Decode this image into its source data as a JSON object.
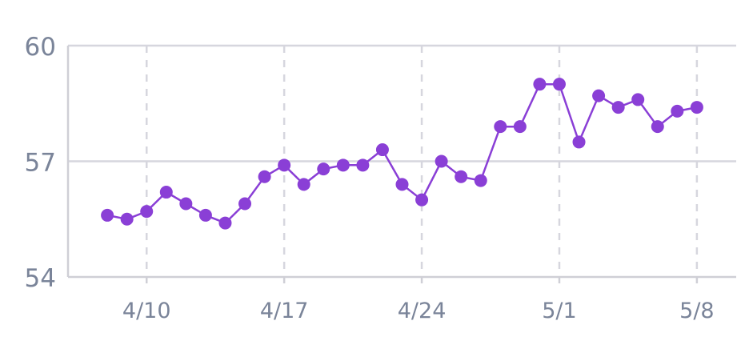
{
  "chart_data": {
    "type": "line",
    "title": "",
    "xlabel": "",
    "ylabel": "",
    "ylim": [
      54,
      60
    ],
    "y_ticks": [
      "54",
      "57",
      "60"
    ],
    "x_ticks": [
      {
        "label": "4/10",
        "date": "2023-04-10"
      },
      {
        "label": "4/17",
        "date": "2023-04-17"
      },
      {
        "label": "4/24",
        "date": "2023-04-24"
      },
      {
        "label": "5/1",
        "date": "2023-05-01"
      },
      {
        "label": "5/8",
        "date": "2023-05-08"
      }
    ],
    "x_range": [
      "2023-04-06",
      "2023-05-10"
    ],
    "grid": {
      "horizontal": "solid",
      "vertical": "dashed"
    },
    "colors": {
      "series": "#8a3fd6",
      "axis": "#cfcfd6",
      "grid": "#d6d6de",
      "tick_text": "#7a8499"
    },
    "series": [
      {
        "x": [
          "2023-04-08",
          "2023-04-09",
          "2023-04-10",
          "2023-04-11",
          "2023-04-12",
          "2023-04-13",
          "2023-04-14",
          "2023-04-15",
          "2023-04-16",
          "2023-04-17",
          "2023-04-18",
          "2023-04-19",
          "2023-04-20",
          "2023-04-21",
          "2023-04-22",
          "2023-04-23",
          "2023-04-24",
          "2023-04-25",
          "2023-04-26",
          "2023-04-27",
          "2023-04-28",
          "2023-04-29",
          "2023-04-30",
          "2023-05-01",
          "2023-05-02",
          "2023-05-03",
          "2023-05-04",
          "2023-05-05",
          "2023-05-06",
          "2023-05-07",
          "2023-05-08"
        ],
        "values": [
          55.6,
          55.5,
          55.7,
          56.2,
          55.9,
          55.6,
          55.4,
          55.9,
          56.6,
          56.9,
          56.4,
          56.8,
          56.9,
          56.9,
          57.3,
          56.4,
          56.0,
          57.0,
          56.6,
          56.5,
          57.9,
          57.9,
          59.0,
          59.0,
          57.5,
          58.7,
          58.4,
          58.6,
          57.9,
          58.3,
          58.4
        ]
      }
    ]
  }
}
